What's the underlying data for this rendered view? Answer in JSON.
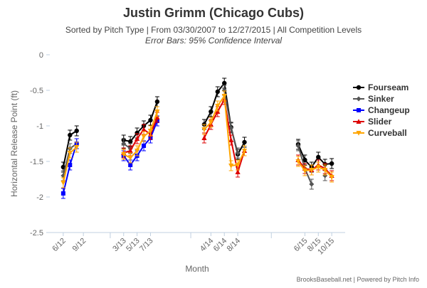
{
  "chart_data": {
    "type": "line",
    "title": "Justin Grimm (Chicago Cubs)",
    "subtitle": "Sorted by Pitch Type | From 03/30/2007 to 12/27/2015 | All Competition Levels",
    "subtitle2": "Error Bars: 95% Confidence Interval",
    "xlabel": "Month",
    "ylabel": "Horizontal Release Point (ft)",
    "ylim": [
      -2.5,
      0
    ],
    "yticks": [
      0,
      -0.5,
      -1,
      -1.5,
      -2,
      -2.5
    ],
    "grid": false,
    "legend_position": "right",
    "credit": "BrooksBaseball.net | Powered by Pitch Info",
    "x": [
      "2012-06",
      "2012-07",
      "2012-08",
      "2012-09",
      "2013-03",
      "2013-04",
      "2013-05",
      "2013-06",
      "2013-07",
      "2013-08",
      "2013-09",
      "2014-03",
      "2014-04",
      "2014-05",
      "2014-06",
      "2014-07",
      "2014-08",
      "2014-09",
      "2015-06",
      "2015-07",
      "2015-08",
      "2015-09",
      "2015-10"
    ],
    "x_tick_labels": [
      {
        "label": "6/12",
        "x": "2012-06"
      },
      {
        "label": "9/12",
        "x": "2012-09"
      },
      {
        "label": "3/13",
        "x": "2013-03"
      },
      {
        "label": "5/13",
        "x": "2013-05"
      },
      {
        "label": "7/13",
        "x": "2013-07"
      },
      {
        "label": "4/14",
        "x": "2014-04"
      },
      {
        "label": "6/14",
        "x": "2014-06"
      },
      {
        "label": "8/14",
        "x": "2014-08"
      },
      {
        "label": "6/15",
        "x": "2015-06"
      },
      {
        "label": "8/15",
        "x": "2015-08"
      },
      {
        "label": "10/15",
        "x": "2015-10"
      }
    ],
    "series": [
      {
        "name": "Fourseam",
        "color": "#000000",
        "marker": "circle",
        "segments": [
          [
            [
              "2012-06",
              -1.58
            ],
            [
              "2012-07",
              -1.13
            ],
            [
              "2012-08",
              -1.07
            ]
          ],
          [
            [
              "2013-03",
              -1.2
            ],
            [
              "2013-04",
              -1.22
            ],
            [
              "2013-05",
              -1.1
            ],
            [
              "2013-06",
              -1.0
            ],
            [
              "2013-07",
              -0.92
            ],
            [
              "2013-08",
              -0.66
            ]
          ],
          [
            [
              "2014-03",
              -0.98
            ],
            [
              "2014-04",
              -0.8
            ],
            [
              "2014-05",
              -0.52
            ],
            [
              "2014-06",
              -0.4
            ],
            [
              "2014-07",
              -1.02
            ],
            [
              "2014-08",
              -1.4
            ],
            [
              "2014-09",
              -1.23
            ]
          ],
          [
            [
              "2015-05",
              -1.26
            ],
            [
              "2015-06",
              -1.48
            ],
            [
              "2015-07",
              -1.58
            ],
            [
              "2015-08",
              -1.44
            ],
            [
              "2015-09",
              -1.54
            ],
            [
              "2015-10",
              -1.53
            ]
          ]
        ]
      },
      {
        "name": "Sinker",
        "color": "#555555",
        "marker": "diamond",
        "segments": [
          [
            [
              "2012-06",
              -1.7
            ],
            [
              "2012-07",
              -1.32
            ],
            [
              "2012-08",
              -1.25
            ]
          ],
          [
            [
              "2013-03",
              -1.25
            ],
            [
              "2013-04",
              -1.32
            ]
          ],
          [
            [
              "2014-06",
              -0.5
            ],
            [
              "2014-07",
              -1.03
            ],
            [
              "2014-08",
              -1.38
            ]
          ],
          [
            [
              "2015-05",
              -1.28
            ],
            [
              "2015-06",
              -1.6
            ],
            [
              "2015-07",
              -1.82
            ]
          ],
          [
            [
              "2015-09",
              -1.7
            ]
          ]
        ]
      },
      {
        "name": "Changeup",
        "color": "#0000ff",
        "marker": "square",
        "segments": [
          [
            [
              "2012-06",
              -1.95
            ],
            [
              "2012-07",
              -1.55
            ],
            [
              "2012-08",
              -1.25
            ]
          ],
          [
            [
              "2013-03",
              -1.42
            ],
            [
              "2013-04",
              -1.55
            ],
            [
              "2013-05",
              -1.42
            ],
            [
              "2013-06",
              -1.28
            ],
            [
              "2013-07",
              -1.17
            ],
            [
              "2013-08",
              -0.93
            ]
          ]
        ]
      },
      {
        "name": "Slider",
        "color": "#dd0000",
        "marker": "triangle",
        "segments": [
          [
            [
              "2013-03",
              -1.38
            ],
            [
              "2013-04",
              -1.35
            ],
            [
              "2013-05",
              -1.18
            ],
            [
              "2013-06",
              -1.05
            ],
            [
              "2013-07",
              -1.12
            ],
            [
              "2013-08",
              -0.88
            ]
          ],
          [
            [
              "2014-03",
              -1.17
            ],
            [
              "2014-04",
              -0.98
            ],
            [
              "2014-05",
              -0.8
            ],
            [
              "2014-06",
              -0.63
            ],
            [
              "2014-07",
              -1.2
            ],
            [
              "2014-08",
              -1.65
            ],
            [
              "2014-09",
              -1.35
            ]
          ],
          [
            [
              "2015-05",
              -1.48
            ],
            [
              "2015-06",
              -1.6
            ],
            [
              "2015-07",
              -1.62
            ],
            [
              "2015-08",
              -1.55
            ],
            [
              "2015-09",
              -1.6
            ],
            [
              "2015-10",
              -1.7
            ]
          ]
        ]
      },
      {
        "name": "Curveball",
        "color": "#ffa500",
        "marker": "triangle-down",
        "segments": [
          [
            [
              "2012-06",
              -1.8
            ],
            [
              "2012-07",
              -1.38
            ],
            [
              "2012-08",
              -1.3
            ]
          ],
          [
            [
              "2013-03",
              -1.4
            ],
            [
              "2013-04",
              -1.45
            ],
            [
              "2013-05",
              -1.35
            ],
            [
              "2013-06",
              -1.15
            ],
            [
              "2013-07",
              -1.07
            ],
            [
              "2013-08",
              -0.8
            ]
          ],
          [
            [
              "2014-03",
              -1.05
            ],
            [
              "2014-04",
              -0.95
            ],
            [
              "2014-05",
              -0.72
            ],
            [
              "2014-06",
              -0.58
            ],
            [
              "2014-07",
              -1.56
            ],
            [
              "2014-08",
              -1.55
            ],
            [
              "2014-09",
              -1.35
            ]
          ],
          [
            [
              "2015-05",
              -1.5
            ],
            [
              "2015-06",
              -1.63
            ],
            [
              "2015-07",
              -1.62
            ],
            [
              "2015-08",
              -1.58
            ],
            [
              "2015-09",
              -1.62
            ],
            [
              "2015-10",
              -1.72
            ]
          ]
        ]
      }
    ]
  }
}
